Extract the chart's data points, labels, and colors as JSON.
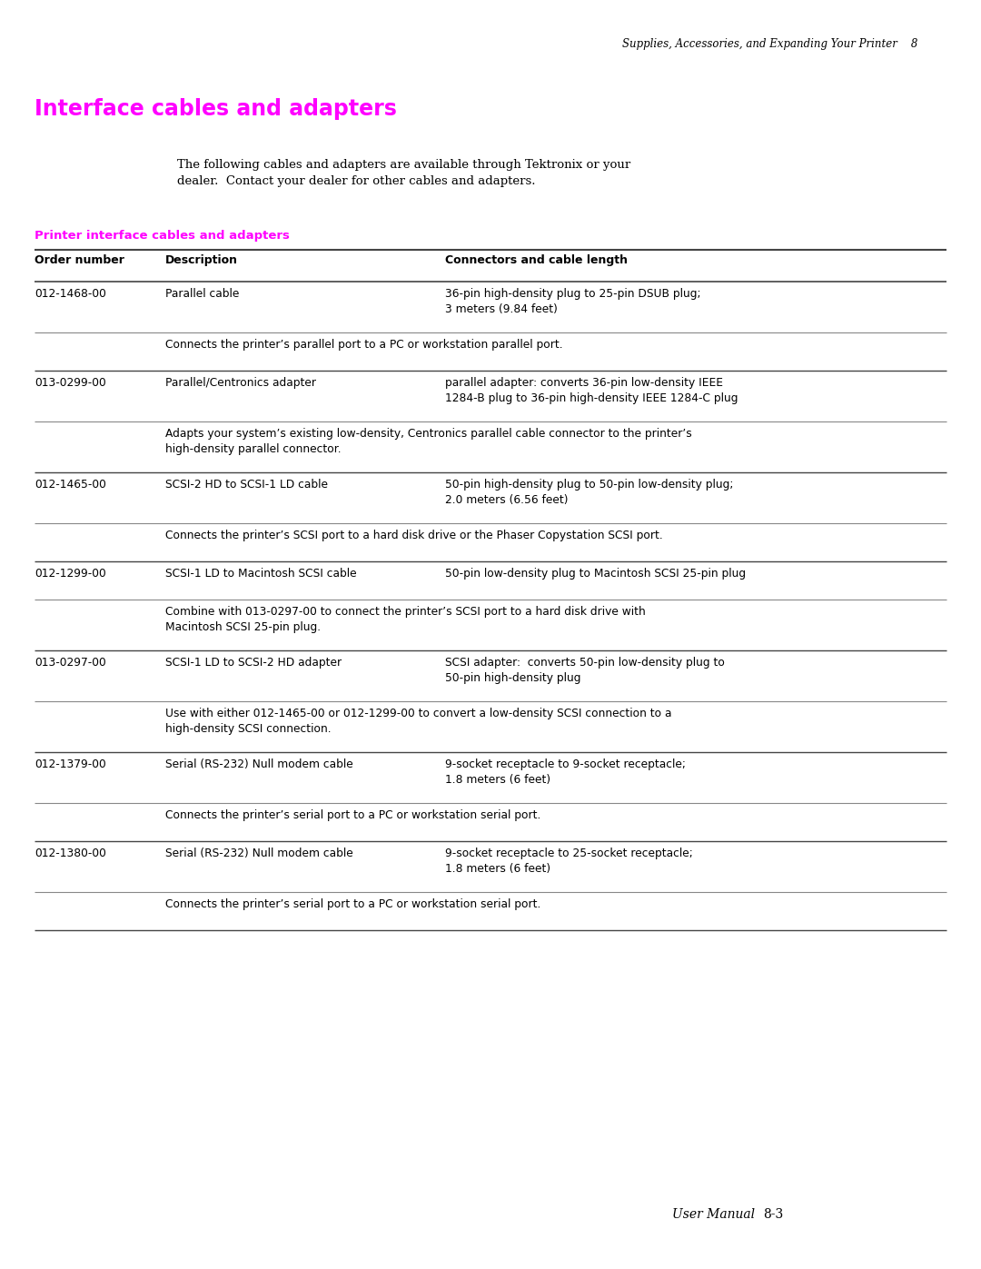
{
  "page_header": "Supplies, Accessories, and Expanding Your Printer    8",
  "main_title": "Interface cables and adapters",
  "intro_text": "The following cables and adapters are available through Tektronix or your\ndealer.  Contact your dealer for other cables and adapters.",
  "section_title": "Printer interface cables and adapters",
  "col_headers": [
    "Order number",
    "Description",
    "Connectors and cable length"
  ],
  "magenta_color": "#FF00FF",
  "text_color": "#000000",
  "dark_line_color": "#555555",
  "light_line_color": "#888888",
  "background_color": "#FFFFFF",
  "footer_italic": "User Manual",
  "footer_page": "8-3",
  "rows": [
    {
      "order": "012-1468-00",
      "description": "Parallel cable",
      "connector": "36-pin high-density plug to 25-pin DSUB plug;\n3 meters (9.84 feet)",
      "note": "Connects the printer’s parallel port to a PC or workstation parallel port."
    },
    {
      "order": "013-0299-00",
      "description": "Parallel/Centronics adapter",
      "connector": "parallel adapter: converts 36-pin low-density IEEE\n1284-B plug to 36-pin high-density IEEE 1284-C plug",
      "note": "Adapts your system’s existing low-density, Centronics parallel cable connector to the printer’s\nhigh-density parallel connector."
    },
    {
      "order": "012-1465-00",
      "description": "SCSI-2 HD to SCSI-1 LD cable",
      "connector": "50-pin high-density plug to 50-pin low-density plug;\n2.0 meters (6.56 feet)",
      "note": "Connects the printer’s SCSI port to a hard disk drive or the Phaser Copystation SCSI port."
    },
    {
      "order": "012-1299-00",
      "description": "SCSI-1 LD to Macintosh SCSI cable",
      "connector": "50-pin low-density plug to Macintosh SCSI 25-pin plug",
      "note": "Combine with 013-0297-00 to connect the printer’s SCSI port to a hard disk drive with\nMacintosh SCSI 25-pin plug."
    },
    {
      "order": "013-0297-00",
      "description": "SCSI-1 LD to SCSI-2 HD adapter",
      "connector": "SCSI adapter:  converts 50-pin low-density plug to\n50-pin high-density plug",
      "note": "Use with either 012-1465-00 or 012-1299-00 to convert a low-density SCSI connection to a\nhigh-density SCSI connection."
    },
    {
      "order": "012-1379-00",
      "description": "Serial (RS-232) Null modem cable",
      "connector": "9-socket receptacle to 9-socket receptacle;\n1.8 meters (6 feet)",
      "note": "Connects the printer’s serial port to a PC or workstation serial port."
    },
    {
      "order": "012-1380-00",
      "description": "Serial (RS-232) Null modem cable",
      "connector": "9-socket receptacle to 25-socket receptacle;\n1.8 meters (6 feet)",
      "note": "Connects the printer’s serial port to a PC or workstation serial port."
    }
  ]
}
